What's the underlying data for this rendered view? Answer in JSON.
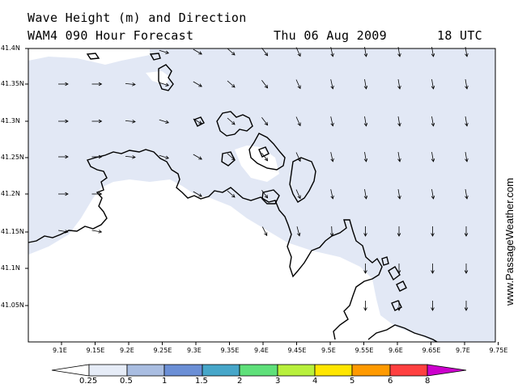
{
  "header": {
    "title_line1": "Wave Height (m) and Direction",
    "title_line2": "WAM4 090 Hour Forecast",
    "date": "Thu 06 Aug 2009",
    "time": "18 UTC"
  },
  "watermark": "www.PassageWeather.com",
  "axes": {
    "lat_labels": [
      "41.4N",
      "41.35N",
      "41.3N",
      "41.25N",
      "41.2N",
      "41.15N",
      "41.1N",
      "41.05N"
    ],
    "lon_labels": [
      "9.1E",
      "9.15E",
      "9.2E",
      "9.25E",
      "9.3E",
      "9.35E",
      "9.4E",
      "9.45E",
      "9.5E",
      "9.55E",
      "9.6E",
      "9.65E",
      "9.7E",
      "9.75E"
    ]
  },
  "legend": {
    "labels": [
      "0.25",
      "0.5",
      "1",
      "1.5",
      "2",
      "3",
      "4",
      "5",
      "6",
      "8"
    ],
    "colors": [
      "#e6ecf7",
      "#a9bde1",
      "#6b8fd6",
      "#46a6c9",
      "#5fe07a",
      "#b8f03c",
      "#ffe600",
      "#ff9a00",
      "#ff4040",
      "#c8002a",
      "#cc00cc"
    ]
  },
  "colors": {
    "sea_low": "#e2e8f5",
    "land": "#ffffff",
    "coast": "#000000"
  }
}
